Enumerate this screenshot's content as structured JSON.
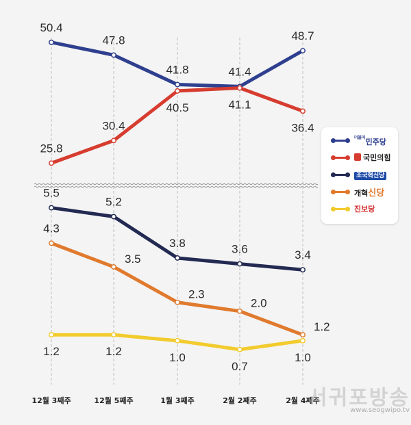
{
  "chart_data": {
    "type": "line",
    "categories": [
      "12월 3째주",
      "12월 5째주",
      "1월 3째주",
      "2월 2째주",
      "2월 4째주"
    ],
    "panels": [
      {
        "id": "top",
        "ylim": [
          20,
          55
        ],
        "series": [
          {
            "name": "민주당",
            "color": "#2f3f8f",
            "values": [
              50.4,
              47.8,
              41.8,
              41.4,
              48.7
            ],
            "labels": [
              "50.4",
              "47.8",
              "41.8",
              "41.4",
              "48.7"
            ],
            "label_pos": [
              "above",
              "above",
              "above",
              "above",
              "above"
            ]
          },
          {
            "name": "국민의힘",
            "color": "#d63c2f",
            "values": [
              25.8,
              30.4,
              40.5,
              41.1,
              36.4
            ],
            "labels": [
              "25.8",
              "30.4",
              "40.5",
              "41.1",
              "36.4"
            ],
            "label_pos": [
              "above",
              "above",
              "below",
              "below",
              "below"
            ]
          }
        ]
      },
      {
        "id": "bottom",
        "ylim": [
          0,
          6
        ],
        "series": [
          {
            "name": "조국혁신당",
            "color": "#232a52",
            "values": [
              5.5,
              5.2,
              3.8,
              3.6,
              3.4
            ],
            "labels": [
              "5.5",
              "5.2",
              "3.8",
              "3.6",
              "3.4"
            ],
            "label_pos": [
              "above",
              "above",
              "above",
              "above",
              "above"
            ]
          },
          {
            "name": "개혁신당",
            "color": "#e07a2e",
            "values": [
              4.3,
              3.5,
              2.3,
              2.0,
              1.2
            ],
            "labels": [
              "4.3",
              "3.5",
              "2.3",
              "2.0",
              "1.2"
            ],
            "label_pos": [
              "above",
              "right",
              "right",
              "right",
              "right"
            ]
          },
          {
            "name": "진보당",
            "color": "#f2cb2e",
            "values": [
              1.2,
              1.2,
              1.0,
              0.7,
              1.0
            ],
            "labels": [
              "1.2",
              "1.2",
              "1.0",
              "0.7",
              "1.0"
            ],
            "label_pos": [
              "below",
              "below",
              "below",
              "below",
              "below"
            ]
          }
        ]
      }
    ],
    "legend": {
      "position": "right",
      "items": [
        {
          "key": "minju",
          "label": "민주당",
          "color": "#2f3f8f",
          "small": "더불어"
        },
        {
          "key": "ppp",
          "label": "국민의힘",
          "color": "#d63c2f"
        },
        {
          "key": "cho",
          "label": "조국혁신당",
          "color": "#232a52"
        },
        {
          "key": "reform",
          "label": "개혁신당",
          "color": "#e07a2e",
          "part1": "개혁",
          "part2": "신당"
        },
        {
          "key": "jinbo",
          "label": "진보당",
          "color": "#f2cb2e"
        }
      ]
    }
  },
  "watermark": {
    "main": "서귀포방송",
    "url": "www.seogwipo.tv"
  }
}
